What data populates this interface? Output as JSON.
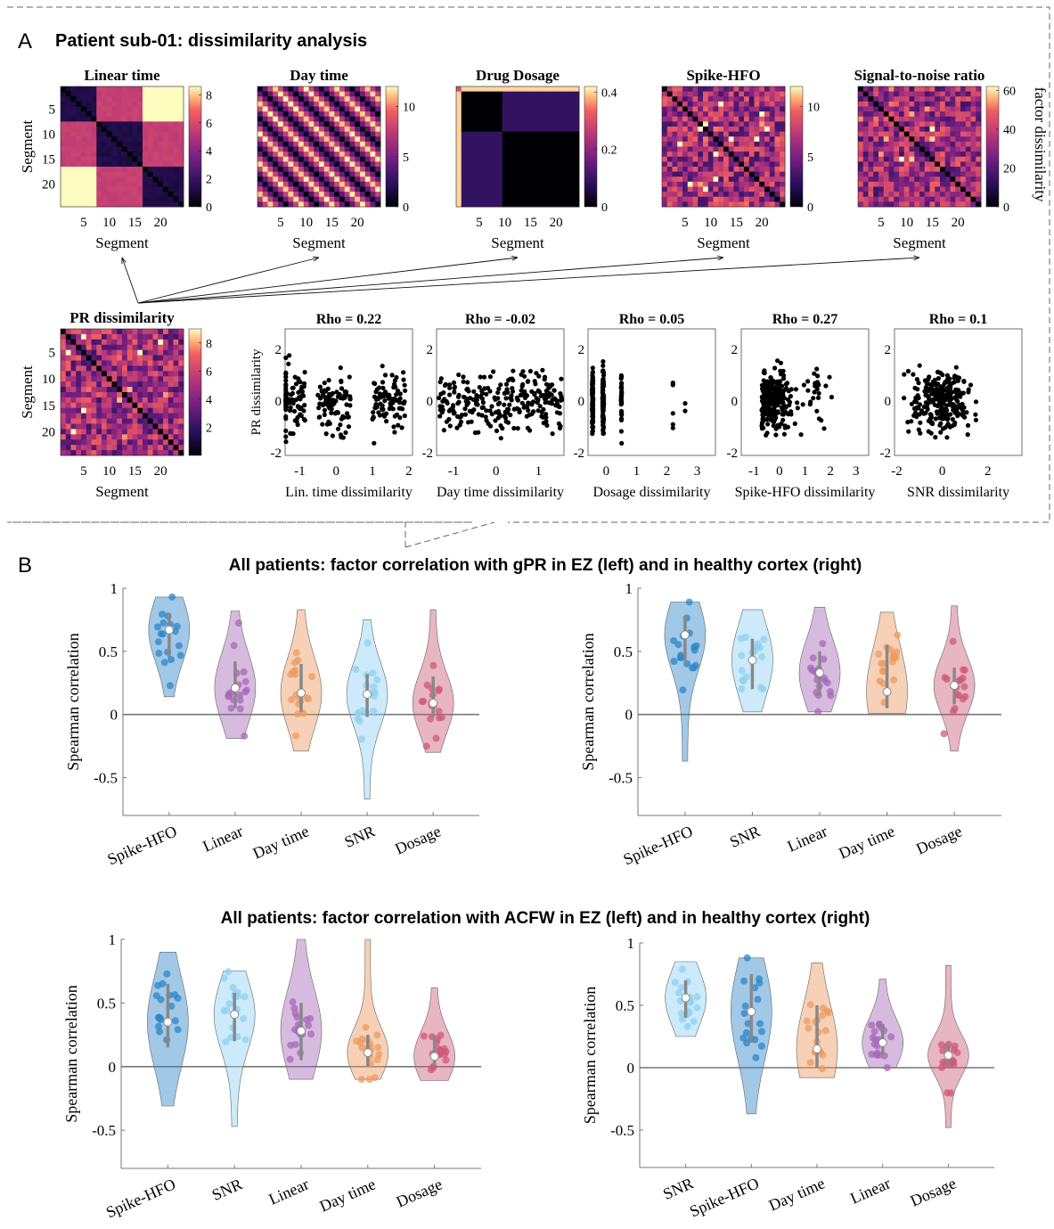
{
  "panel_a": {
    "letter": "A",
    "title": "Patient sub-01: dissimilarity analysis",
    "colorbar_label": "factor dissimilarity",
    "segment_label": "Segment",
    "segment_ticks": [
      "5",
      "10",
      "15",
      "20"
    ],
    "heatmaps": [
      {
        "title": "Linear time",
        "cbar_ticks": [
          "8",
          "6",
          "4",
          "2",
          "0"
        ],
        "cbar_max": 8.6,
        "kind": "linear"
      },
      {
        "title": "Day time",
        "cbar_ticks": [
          "10",
          "5",
          "0"
        ],
        "cbar_max": 12,
        "kind": "day"
      },
      {
        "title": "Drug Dosage",
        "cbar_ticks": [
          "0.4",
          "0.2",
          "0"
        ],
        "cbar_max": 0.42,
        "kind": "dosage"
      },
      {
        "title": "Spike-HFO",
        "cbar_ticks": [
          "10",
          "5",
          "0"
        ],
        "cbar_max": 12,
        "kind": "noisy"
      },
      {
        "title": "Signal-to-noise ratio",
        "cbar_ticks": [
          "60",
          "40",
          "20",
          "0"
        ],
        "cbar_max": 62,
        "kind": "noisy"
      }
    ],
    "pr_heatmap": {
      "title": "PR dissimilarity",
      "cbar_ticks": [
        "8",
        "6",
        "4",
        "2"
      ],
      "cbar_max": 9,
      "kind": "noisy"
    },
    "scatter_ylabel": "PR dissimilarity",
    "scatter_yticks": [
      "2",
      "0",
      "-2"
    ],
    "scatters": [
      {
        "title": "Rho = 0.22",
        "xlabel": "Lin. time dissimilarity",
        "xticks": [
          "-1",
          "0",
          "1",
          "2"
        ],
        "xlim": [
          -1.4,
          2.1
        ],
        "pattern": "linear"
      },
      {
        "title": "Rho = -0.02",
        "xlabel": "Day time dissimilarity",
        "xticks": [
          "-1",
          "0",
          "1"
        ],
        "xlim": [
          -1.4,
          1.6
        ],
        "pattern": "uniform"
      },
      {
        "title": "Rho = 0.05",
        "xlabel": "Dosage dissimilarity",
        "xticks": [
          "0",
          "1",
          "2",
          "3"
        ],
        "xlim": [
          -0.6,
          3.6
        ],
        "pattern": "dosage"
      },
      {
        "title": "Rho = 0.27",
        "xlabel": "Spike-HFO dissimilarity",
        "xticks": [
          "-1",
          "0",
          "1",
          "2",
          "3"
        ],
        "xlim": [
          -1.5,
          3.5
        ],
        "pattern": "skew"
      },
      {
        "title": "Rho = 0.1",
        "xlabel": "SNR dissimilarity",
        "xticks": [
          "-2",
          "0",
          "2"
        ],
        "xlim": [
          -2.1,
          3.5
        ],
        "pattern": "cloud"
      }
    ]
  },
  "panel_b": {
    "letter": "B",
    "title_gpr": "All patients: factor correlation with gPR in EZ (left) and in healthy cortex (right)",
    "title_acfw": "All patients: factor correlation with ACFW in EZ (left) and in healthy cortex (right)",
    "ylabel": "Spearman correlation",
    "yticks": [
      "1",
      "0.5",
      "0",
      "-0.5"
    ],
    "colors": {
      "Spike-HFO": "#2e86c8",
      "SNR": "#8fd0f2",
      "Linear": "#a668b8",
      "Day time": "#ec9a60",
      "Dosage": "#cd5a78"
    }
  },
  "chart_data": [
    {
      "type": "violin",
      "title": "All patients: factor correlation with gPR in EZ (left) and in healthy cortex (right)",
      "panel": "gPR-EZ",
      "ylabel": "Spearman correlation",
      "ylim": [
        -0.8,
        1.0
      ],
      "categories": [
        "Spike-HFO",
        "Linear",
        "Day time",
        "SNR",
        "Dosage"
      ],
      "medians": [
        0.67,
        0.21,
        0.17,
        0.16,
        0.09
      ],
      "q1": [
        0.45,
        0.05,
        0.02,
        -0.02,
        -0.02
      ],
      "q3": [
        0.8,
        0.42,
        0.4,
        0.32,
        0.3
      ],
      "min": [
        0.14,
        -0.19,
        -0.29,
        -0.67,
        -0.3
      ],
      "max": [
        0.93,
        0.82,
        0.83,
        0.75,
        0.83
      ]
    },
    {
      "type": "violin",
      "panel": "gPR-healthy",
      "ylabel": "Spearman correlation",
      "ylim": [
        -0.8,
        1.0
      ],
      "categories": [
        "Spike-HFO",
        "SNR",
        "Linear",
        "Day time",
        "Dosage"
      ],
      "medians": [
        0.63,
        0.43,
        0.33,
        0.18,
        0.23
      ],
      "q1": [
        0.4,
        0.2,
        0.15,
        0.05,
        0.08
      ],
      "q3": [
        0.78,
        0.6,
        0.5,
        0.55,
        0.37
      ],
      "min": [
        -0.37,
        0.02,
        0.02,
        0.01,
        -0.29
      ],
      "max": [
        0.89,
        0.83,
        0.85,
        0.81,
        0.86
      ]
    },
    {
      "type": "violin",
      "title": "All patients: factor correlation with ACFW in EZ (left) and in healthy cortex (right)",
      "panel": "ACFW-EZ",
      "ylabel": "Spearman correlation",
      "ylim": [
        -0.8,
        1.0
      ],
      "categories": [
        "Spike-HFO",
        "SNR",
        "Linear",
        "Day time",
        "Dosage"
      ],
      "medians": [
        0.35,
        0.41,
        0.28,
        0.11,
        0.08
      ],
      "q1": [
        0.15,
        0.2,
        0.05,
        0.0,
        0.0
      ],
      "q3": [
        0.65,
        0.58,
        0.5,
        0.25,
        0.25
      ],
      "min": [
        -0.31,
        -0.47,
        -0.1,
        -0.1,
        -0.11
      ],
      "max": [
        0.9,
        0.75,
        1.0,
        1.0,
        0.62
      ]
    },
    {
      "type": "violin",
      "panel": "ACFW-healthy",
      "ylabel": "Spearman correlation",
      "ylim": [
        -0.8,
        1.0
      ],
      "categories": [
        "SNR",
        "Spike-HFO",
        "Day time",
        "Linear",
        "Dosage"
      ],
      "medians": [
        0.56,
        0.45,
        0.15,
        0.2,
        0.1
      ],
      "q1": [
        0.4,
        0.2,
        0.0,
        0.1,
        0.0
      ],
      "q3": [
        0.7,
        0.75,
        0.5,
        0.35,
        0.2
      ],
      "min": [
        0.25,
        -0.37,
        -0.08,
        0.0,
        -0.48
      ],
      "max": [
        0.85,
        0.88,
        0.84,
        0.71,
        0.82
      ]
    }
  ]
}
